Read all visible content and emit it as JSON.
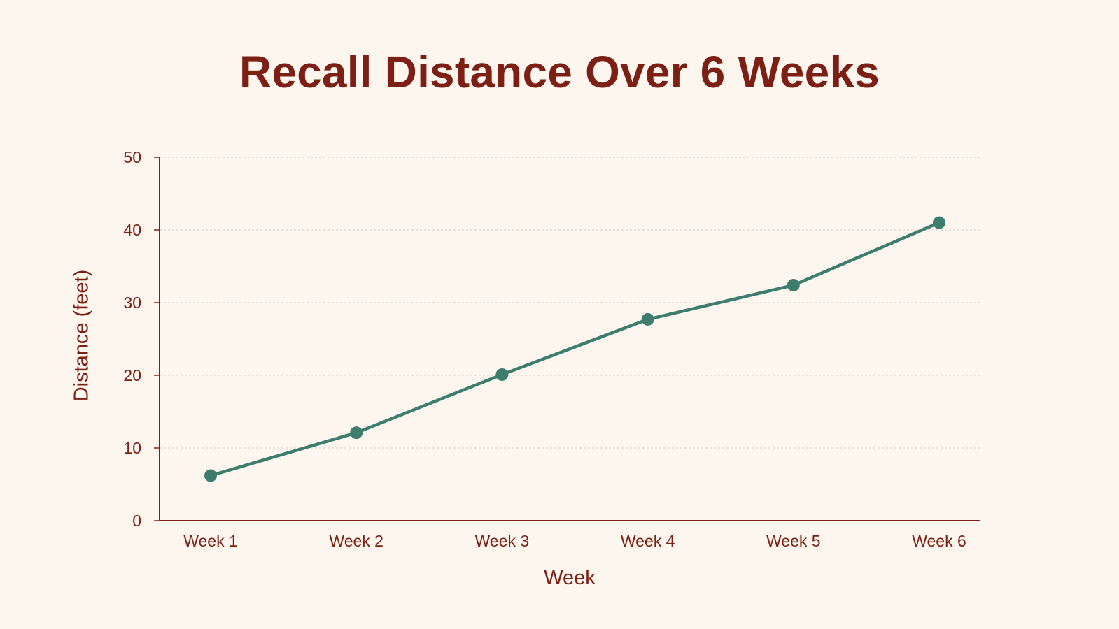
{
  "chart_data": {
    "type": "line",
    "title": "Recall Distance Over 6 Weeks",
    "xlabel": "Week",
    "ylabel": "Distance (feet)",
    "categories": [
      "Week 1",
      "Week 2",
      "Week 3",
      "Week 4",
      "Week 5",
      "Week 6"
    ],
    "series": [
      {
        "values": [
          6.2,
          12.1,
          20.1,
          27.7,
          32.4,
          41.0
        ]
      }
    ],
    "ylim": [
      0,
      50
    ],
    "yticks": [
      "0",
      "10",
      "20",
      "30",
      "40",
      "50"
    ],
    "grid": true,
    "legend": "none"
  },
  "colors": {
    "background": "#fcf6ee",
    "text": "#7c2016",
    "axis": "#7c2016",
    "grid": "#d8cfc4",
    "line": "#3d7d6d"
  }
}
